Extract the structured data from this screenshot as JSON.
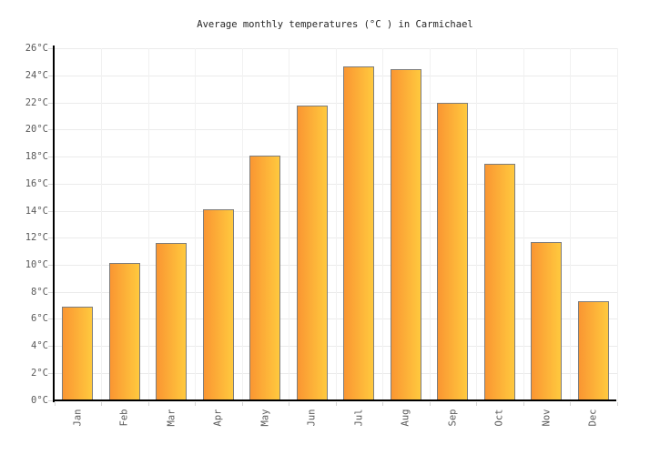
{
  "chart_data": {
    "type": "bar",
    "title": "Average monthly temperatures (°C ) in Carmichael",
    "categories": [
      "Jan",
      "Feb",
      "Mar",
      "Apr",
      "May",
      "Jun",
      "Jul",
      "Aug",
      "Sep",
      "Oct",
      "Nov",
      "Dec"
    ],
    "values": [
      6.9,
      10.1,
      11.6,
      14.1,
      18.1,
      21.8,
      24.7,
      24.5,
      22.0,
      17.5,
      11.7,
      7.3
    ],
    "xlabel": "",
    "ylabel": "",
    "ylim": [
      0,
      26
    ],
    "ytick_step": 2,
    "ytick_suffix": "°C",
    "grid": true,
    "legend": false
  },
  "colors": {
    "background": "#FFFFFF",
    "bar_gradient_left": "#FA9632",
    "bar_gradient_right": "#FFC93E",
    "bar_border": "#7D7D7D",
    "gridline_horizontal": "#EBEBEB",
    "gridline_vertical": "#F1F1F1",
    "axis": "#000000",
    "tick_mark": "#D5D5D5",
    "axis_label": "#595959",
    "title": "#262626"
  }
}
